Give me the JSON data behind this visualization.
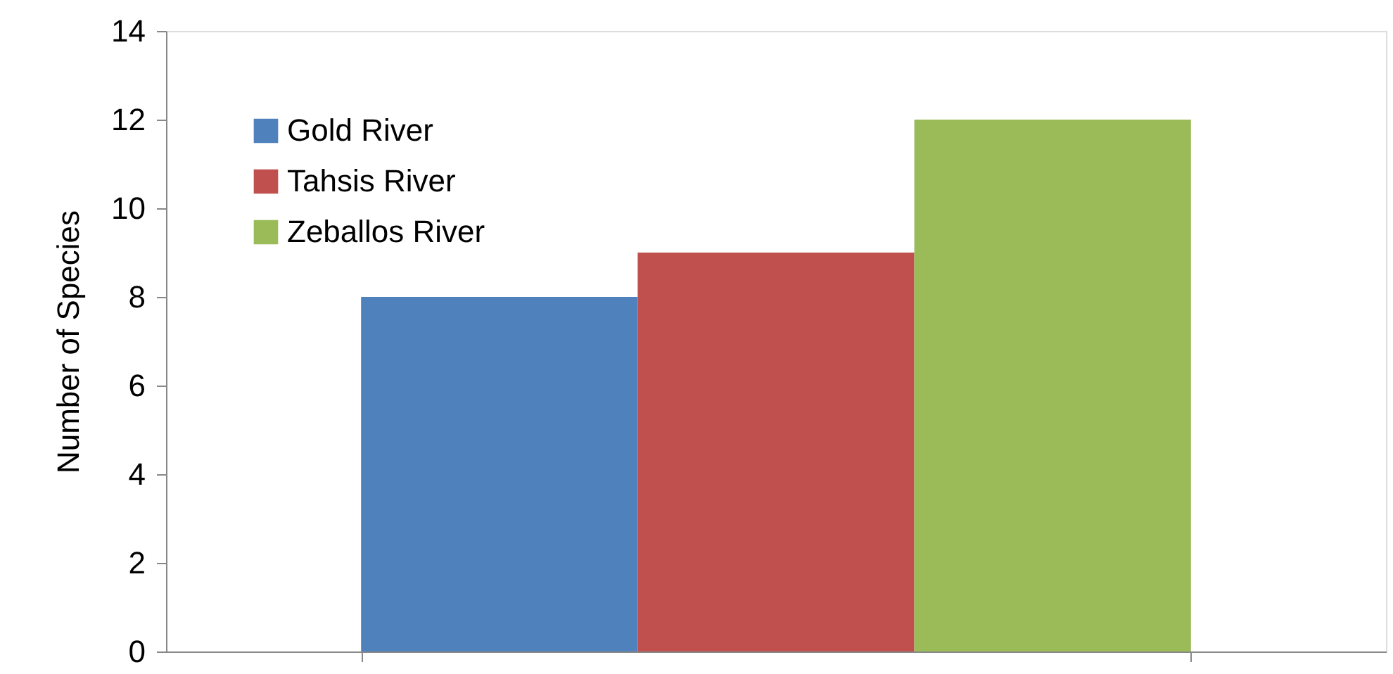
{
  "chart_data": {
    "type": "bar",
    "ylabel": "Number of Species",
    "categories": [
      null
    ],
    "series": [
      {
        "name": "Gold River",
        "color": "#4f81bd",
        "values": [
          8
        ]
      },
      {
        "name": "Tahsis River",
        "color": "#c0504d",
        "values": [
          9
        ]
      },
      {
        "name": "Zeballos River",
        "color": "#9bbb59",
        "values": [
          12
        ]
      }
    ],
    "ylim": [
      0,
      14
    ],
    "yticks": [
      0,
      2,
      4,
      6,
      8,
      10,
      12,
      14
    ],
    "grid": false,
    "legend": "top left"
  }
}
